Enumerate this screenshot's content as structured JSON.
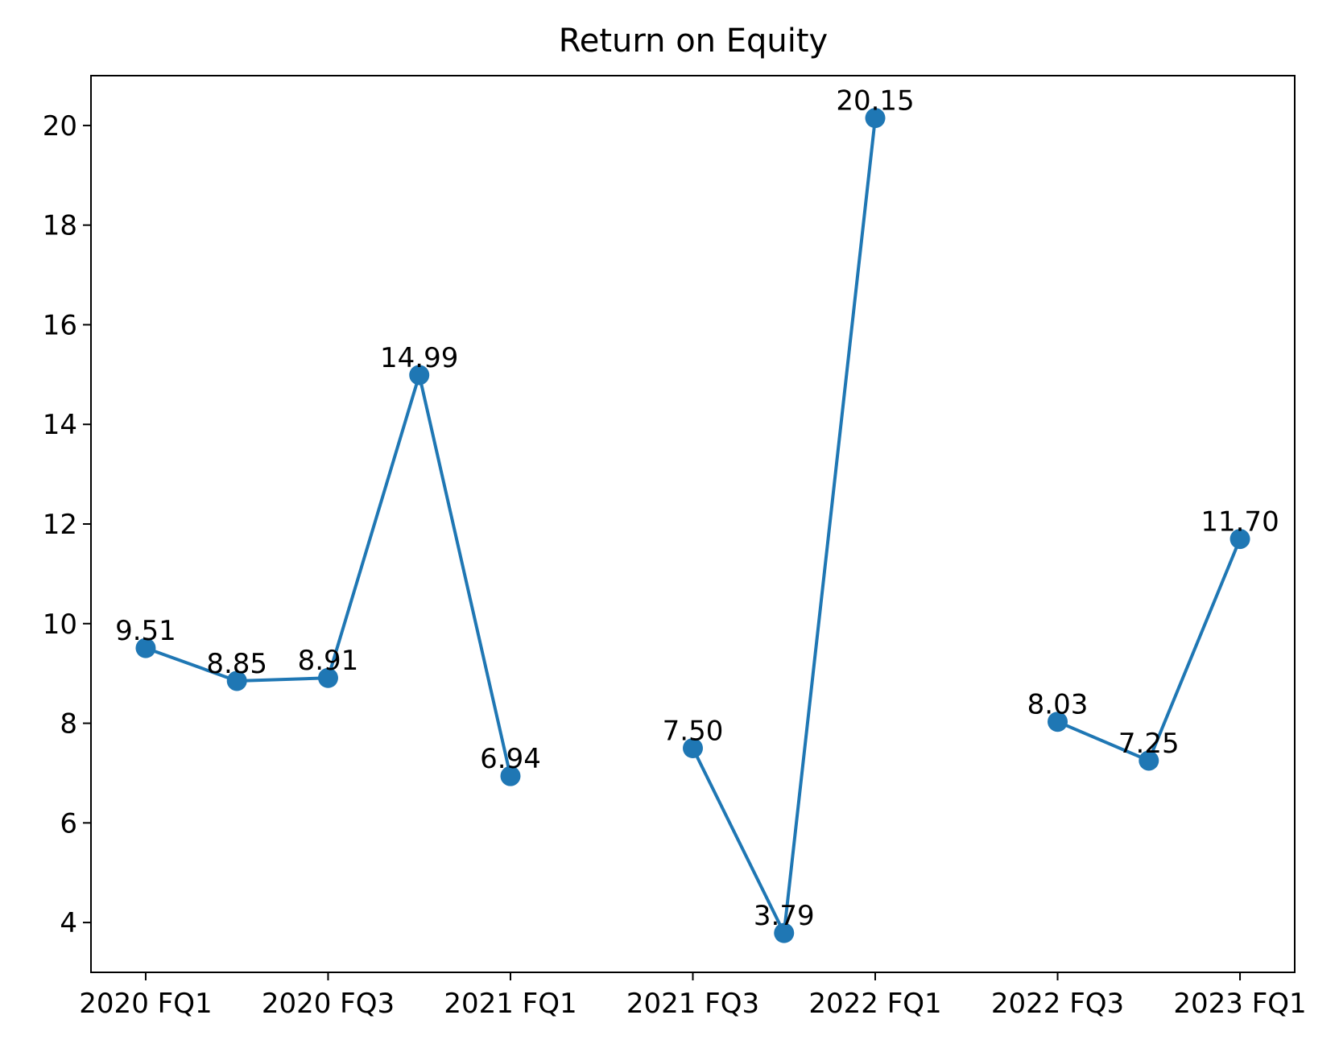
{
  "chart_data": {
    "type": "line",
    "title": "Return on Equity",
    "xlabel": "",
    "ylabel": "",
    "x_tick_labels": [
      "2020 FQ1",
      "2020 FQ3",
      "2021 FQ1",
      "2021 FQ3",
      "2022 FQ1",
      "2022 FQ3",
      "2023 FQ1"
    ],
    "y_ticks": [
      4,
      6,
      8,
      10,
      12,
      14,
      16,
      18,
      20
    ],
    "ylim": [
      3.0,
      21.0
    ],
    "xlim": [
      -0.6,
      12.6
    ],
    "grid": false,
    "color": "#1f77b4",
    "series": [
      {
        "x": [
          0,
          1,
          2,
          3,
          4,
          6,
          7,
          8,
          10,
          11,
          12
        ],
        "values": [
          9.51,
          8.85,
          8.91,
          14.99,
          6.94,
          7.5,
          3.79,
          20.15,
          8.03,
          7.25,
          11.7
        ],
        "labels": [
          "9.51",
          "8.85",
          "8.91",
          "14.99",
          "6.94",
          "7.50",
          "3.79",
          "20.15",
          "8.03",
          "7.25",
          "11.70"
        ],
        "segments": [
          [
            0,
            4
          ],
          [
            5,
            7
          ],
          [
            8,
            10
          ]
        ]
      }
    ]
  }
}
